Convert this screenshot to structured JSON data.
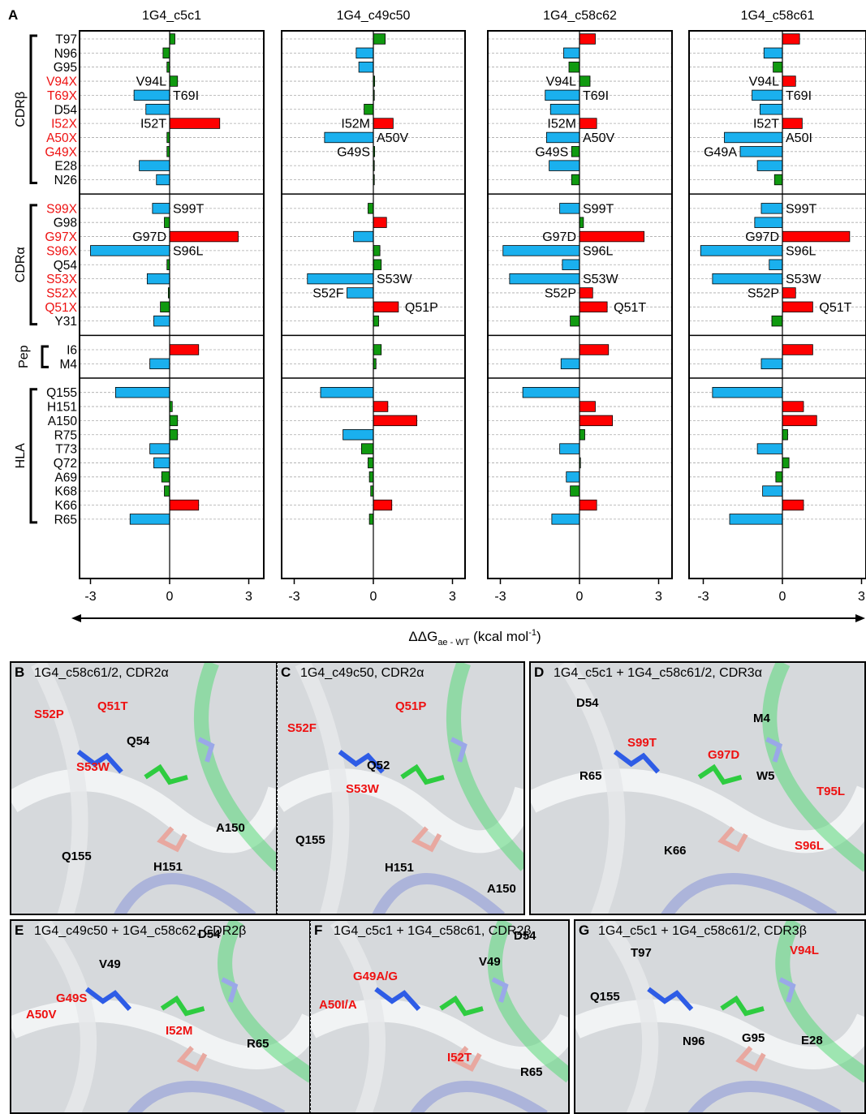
{
  "panel_a_letter": "A",
  "chart_data": {
    "type": "bar",
    "orientation": "horizontal",
    "xlabel_main": "ΔΔG",
    "xlabel_sub": "ae - WT",
    "xlabel_unit_pre": " (kcal mol",
    "xlabel_unit_sup": "-1",
    "xlabel_unit_post": ")",
    "xlim": [
      -3,
      3
    ],
    "xticks": [
      "-3",
      "0",
      "3"
    ],
    "colors": {
      "favorable": "#1ab0ee",
      "unfavorable": "#ff0000",
      "neutral": "#109a10"
    },
    "groups": [
      {
        "name": "CDRβ",
        "rows": [
          {
            "label": "T97",
            "red": false
          },
          {
            "label": "N96",
            "red": false
          },
          {
            "label": "G95",
            "red": false
          },
          {
            "label": "V94X",
            "red": true
          },
          {
            "label": "T69X",
            "red": true
          },
          {
            "label": "D54",
            "red": false
          },
          {
            "label": "I52X",
            "red": true
          },
          {
            "label": "A50X",
            "red": true
          },
          {
            "label": "G49X",
            "red": true
          },
          {
            "label": "E28",
            "red": false
          },
          {
            "label": "N26",
            "red": false
          }
        ]
      },
      {
        "name": "CDRα",
        "rows": [
          {
            "label": "S99X",
            "red": true
          },
          {
            "label": "G98",
            "red": false
          },
          {
            "label": "G97X",
            "red": true
          },
          {
            "label": "S96X",
            "red": true
          },
          {
            "label": "Q54",
            "red": false
          },
          {
            "label": "S53X",
            "red": true
          },
          {
            "label": "S52X",
            "red": true
          },
          {
            "label": "Q51X",
            "red": true
          },
          {
            "label": "Y31",
            "red": false
          }
        ]
      },
      {
        "name": "Pep",
        "rows": [
          {
            "label": "I6",
            "red": false
          },
          {
            "label": "M4",
            "red": false
          }
        ]
      },
      {
        "name": "HLA",
        "rows": [
          {
            "label": "Q155",
            "red": false
          },
          {
            "label": "H151",
            "red": false
          },
          {
            "label": "A150",
            "red": false
          },
          {
            "label": "R75",
            "red": false
          },
          {
            "label": "T73",
            "red": false
          },
          {
            "label": "Q72",
            "red": false
          },
          {
            "label": "A69",
            "red": false
          },
          {
            "label": "K68",
            "red": false
          },
          {
            "label": "K66",
            "red": false
          },
          {
            "label": "R65",
            "red": false
          }
        ]
      }
    ],
    "series": [
      {
        "name": "1G4_c5c1",
        "values": [
          0.2,
          -0.25,
          -0.1,
          0.3,
          -1.35,
          -0.9,
          1.9,
          -0.1,
          -0.1,
          -1.15,
          -0.5,
          -0.65,
          -0.2,
          2.6,
          -3.0,
          -0.1,
          -0.85,
          -0.05,
          -0.35,
          -0.6,
          1.1,
          -0.75,
          -2.05,
          0.1,
          0.3,
          0.3,
          -0.75,
          -0.6,
          -0.3,
          -0.2,
          1.1,
          -1.5
        ],
        "annotations": [
          {
            "row": "V94X",
            "text": "V94L"
          },
          {
            "row": "T69X",
            "text": "T69I"
          },
          {
            "row": "I52X",
            "text": "I52T"
          },
          {
            "row": "S99X",
            "text": "S99T"
          },
          {
            "row": "G97X",
            "text": "G97D"
          },
          {
            "row": "S96X",
            "text": "S96L"
          }
        ]
      },
      {
        "name": "1G4_c49c50",
        "values": [
          0.45,
          -0.65,
          -0.55,
          0.05,
          0.0,
          -0.35,
          0.75,
          -1.85,
          0.05,
          0.0,
          0.0,
          -0.2,
          0.5,
          -0.75,
          0.25,
          0.3,
          -2.5,
          -1.0,
          0.95,
          0.2,
          0.3,
          0.1,
          -2.0,
          0.55,
          1.65,
          -1.15,
          -0.45,
          -0.2,
          -0.15,
          -0.1,
          0.7,
          -0.15
        ],
        "annotations": [
          {
            "row": "I52X",
            "text": "I52M"
          },
          {
            "row": "A50X",
            "text": "A50V"
          },
          {
            "row": "G49X",
            "text": "G49S"
          },
          {
            "row": "S53X",
            "text": "S53W"
          },
          {
            "row": "S52X",
            "text": "S52F"
          },
          {
            "row": "Q51X",
            "text": "Q51P"
          }
        ]
      },
      {
        "name": "1G4_c58c62",
        "values": [
          0.6,
          -0.6,
          -0.4,
          0.4,
          -1.3,
          -1.1,
          0.65,
          -1.25,
          -0.3,
          -1.15,
          -0.3,
          -0.75,
          0.15,
          2.45,
          -2.9,
          -0.65,
          -2.65,
          0.5,
          1.05,
          -0.35,
          1.1,
          -0.7,
          -2.15,
          0.6,
          1.25,
          0.2,
          -0.75,
          0.0,
          -0.5,
          -0.35,
          0.65,
          -1.05
        ],
        "annotations": [
          {
            "row": "V94X",
            "text": "V94L"
          },
          {
            "row": "T69X",
            "text": "T69I"
          },
          {
            "row": "I52X",
            "text": "I52M"
          },
          {
            "row": "A50X",
            "text": "A50V"
          },
          {
            "row": "G49X",
            "text": "G49S"
          },
          {
            "row": "S99X",
            "text": "S99T"
          },
          {
            "row": "G97X",
            "text": "G97D"
          },
          {
            "row": "S96X",
            "text": "S96L"
          },
          {
            "row": "S53X",
            "text": "S53W"
          },
          {
            "row": "S52X",
            "text": "S52P"
          },
          {
            "row": "Q51X",
            "text": "Q51T"
          }
        ]
      },
      {
        "name": "1G4_c58c61",
        "values": [
          0.65,
          -0.7,
          -0.35,
          0.5,
          -1.15,
          -0.85,
          0.75,
          -2.2,
          -1.6,
          -0.95,
          -0.3,
          -0.8,
          -1.05,
          2.55,
          -3.1,
          -0.5,
          -2.65,
          0.5,
          1.15,
          -0.4,
          1.15,
          -0.8,
          -2.65,
          0.8,
          1.3,
          0.2,
          -0.95,
          0.25,
          -0.25,
          -0.75,
          0.8,
          -2.0
        ],
        "annotations": [
          {
            "row": "V94X",
            "text": "V94L"
          },
          {
            "row": "T69X",
            "text": "T69I"
          },
          {
            "row": "I52X",
            "text": "I52T"
          },
          {
            "row": "A50X",
            "text": "A50I"
          },
          {
            "row": "G49X",
            "text": "G49A"
          },
          {
            "row": "S99X",
            "text": "S99T"
          },
          {
            "row": "G97X",
            "text": "G97D"
          },
          {
            "row": "S96X",
            "text": "S96L"
          },
          {
            "row": "S53X",
            "text": "S53W"
          },
          {
            "row": "S52X",
            "text": "S52P"
          },
          {
            "row": "Q51X",
            "text": "Q51T"
          }
        ]
      }
    ]
  },
  "structure_panels": [
    {
      "letter": "B",
      "title": "1G4_c58c61/2, CDR2α",
      "labels": [
        {
          "text": "S52P",
          "color": "red"
        },
        {
          "text": "Q51T",
          "color": "red"
        },
        {
          "text": "Q54",
          "color": "black"
        },
        {
          "text": "S53W",
          "color": "red"
        },
        {
          "text": "A150",
          "color": "black"
        },
        {
          "text": "Q155",
          "color": "black"
        },
        {
          "text": "H151",
          "color": "black"
        }
      ]
    },
    {
      "letter": "C",
      "title": "1G4_c49c50, CDR2α",
      "labels": [
        {
          "text": "Q51P",
          "color": "red"
        },
        {
          "text": "S52F",
          "color": "red"
        },
        {
          "text": "Q52",
          "color": "black"
        },
        {
          "text": "S53W",
          "color": "red"
        },
        {
          "text": "Q155",
          "color": "black"
        },
        {
          "text": "H151",
          "color": "black"
        },
        {
          "text": "A150",
          "color": "black"
        }
      ]
    },
    {
      "letter": "D",
      "title": "1G4_c5c1 + 1G4_c58c61/2, CDR3α",
      "labels": [
        {
          "text": "D54",
          "color": "black"
        },
        {
          "text": "M4",
          "color": "black"
        },
        {
          "text": "S99T",
          "color": "red"
        },
        {
          "text": "G97D",
          "color": "red"
        },
        {
          "text": "R65",
          "color": "black"
        },
        {
          "text": "W5",
          "color": "black"
        },
        {
          "text": "T95L",
          "color": "red"
        },
        {
          "text": "K66",
          "color": "black"
        },
        {
          "text": "S96L",
          "color": "red"
        }
      ]
    },
    {
      "letter": "E",
      "title": "1G4_c49c50 + 1G4_c58c62, CDR2β",
      "labels": [
        {
          "text": "D54",
          "color": "black"
        },
        {
          "text": "V49",
          "color": "black"
        },
        {
          "text": "G49S",
          "color": "red"
        },
        {
          "text": "A50V",
          "color": "red"
        },
        {
          "text": "I52M",
          "color": "red"
        },
        {
          "text": "R65",
          "color": "black"
        }
      ]
    },
    {
      "letter": "F",
      "title": "1G4_c5c1 + 1G4_c58c61, CDR2β",
      "labels": [
        {
          "text": "V49",
          "color": "black"
        },
        {
          "text": "D54",
          "color": "black"
        },
        {
          "text": "G49A/G",
          "color": "red"
        },
        {
          "text": "A50I/A",
          "color": "red"
        },
        {
          "text": "I52T",
          "color": "red"
        },
        {
          "text": "R65",
          "color": "black"
        }
      ]
    },
    {
      "letter": "G",
      "title": "1G4_c5c1 + 1G4_c58c61/2, CDR3β",
      "labels": [
        {
          "text": "T97",
          "color": "black"
        },
        {
          "text": "V94L",
          "color": "red"
        },
        {
          "text": "Q155",
          "color": "black"
        },
        {
          "text": "G95",
          "color": "black"
        },
        {
          "text": "N96",
          "color": "black"
        },
        {
          "text": "E28",
          "color": "black"
        }
      ]
    }
  ]
}
